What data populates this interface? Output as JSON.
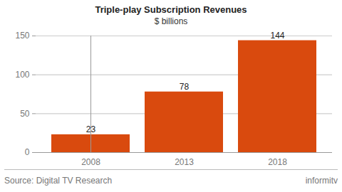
{
  "chart_data": {
    "type": "bar",
    "title": "Triple-play Subscription Revenues",
    "subtitle": "$ billions",
    "categories": [
      "2008",
      "2013",
      "2018"
    ],
    "values": [
      23,
      78,
      144
    ],
    "color": "#d94a0e",
    "ylim": [
      0,
      150
    ],
    "yticks": [
      0,
      50,
      100,
      150
    ],
    "grid": true,
    "data_labels": true,
    "source": "Source: Digital TV Research",
    "credit": "informitv"
  }
}
